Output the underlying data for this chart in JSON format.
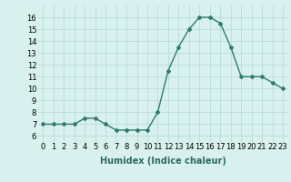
{
  "x": [
    0,
    1,
    2,
    3,
    4,
    5,
    6,
    7,
    8,
    9,
    10,
    11,
    12,
    13,
    14,
    15,
    16,
    17,
    18,
    19,
    20,
    21,
    22,
    23
  ],
  "y": [
    7,
    7,
    7,
    7,
    7.5,
    7.5,
    7,
    6.5,
    6.5,
    6.5,
    6.5,
    8,
    11.5,
    13.5,
    15,
    16,
    16,
    15.5,
    13.5,
    11,
    11,
    11,
    10.5,
    10
  ],
  "line_color": "#2d7d6e",
  "marker": "D",
  "marker_size": 2,
  "bg_color": "#d8f0ee",
  "grid_color": "#b8ddd9",
  "xlabel": "Humidex (Indice chaleur)",
  "ylim": [
    5.5,
    17
  ],
  "xlim": [
    -0.5,
    23.5
  ],
  "yticks": [
    6,
    7,
    8,
    9,
    10,
    11,
    12,
    13,
    14,
    15,
    16
  ],
  "xticks": [
    0,
    1,
    2,
    3,
    4,
    5,
    6,
    7,
    8,
    9,
    10,
    11,
    12,
    13,
    14,
    15,
    16,
    17,
    18,
    19,
    20,
    21,
    22,
    23
  ],
  "tick_fontsize": 6,
  "label_fontsize": 7,
  "line_width": 1.0
}
